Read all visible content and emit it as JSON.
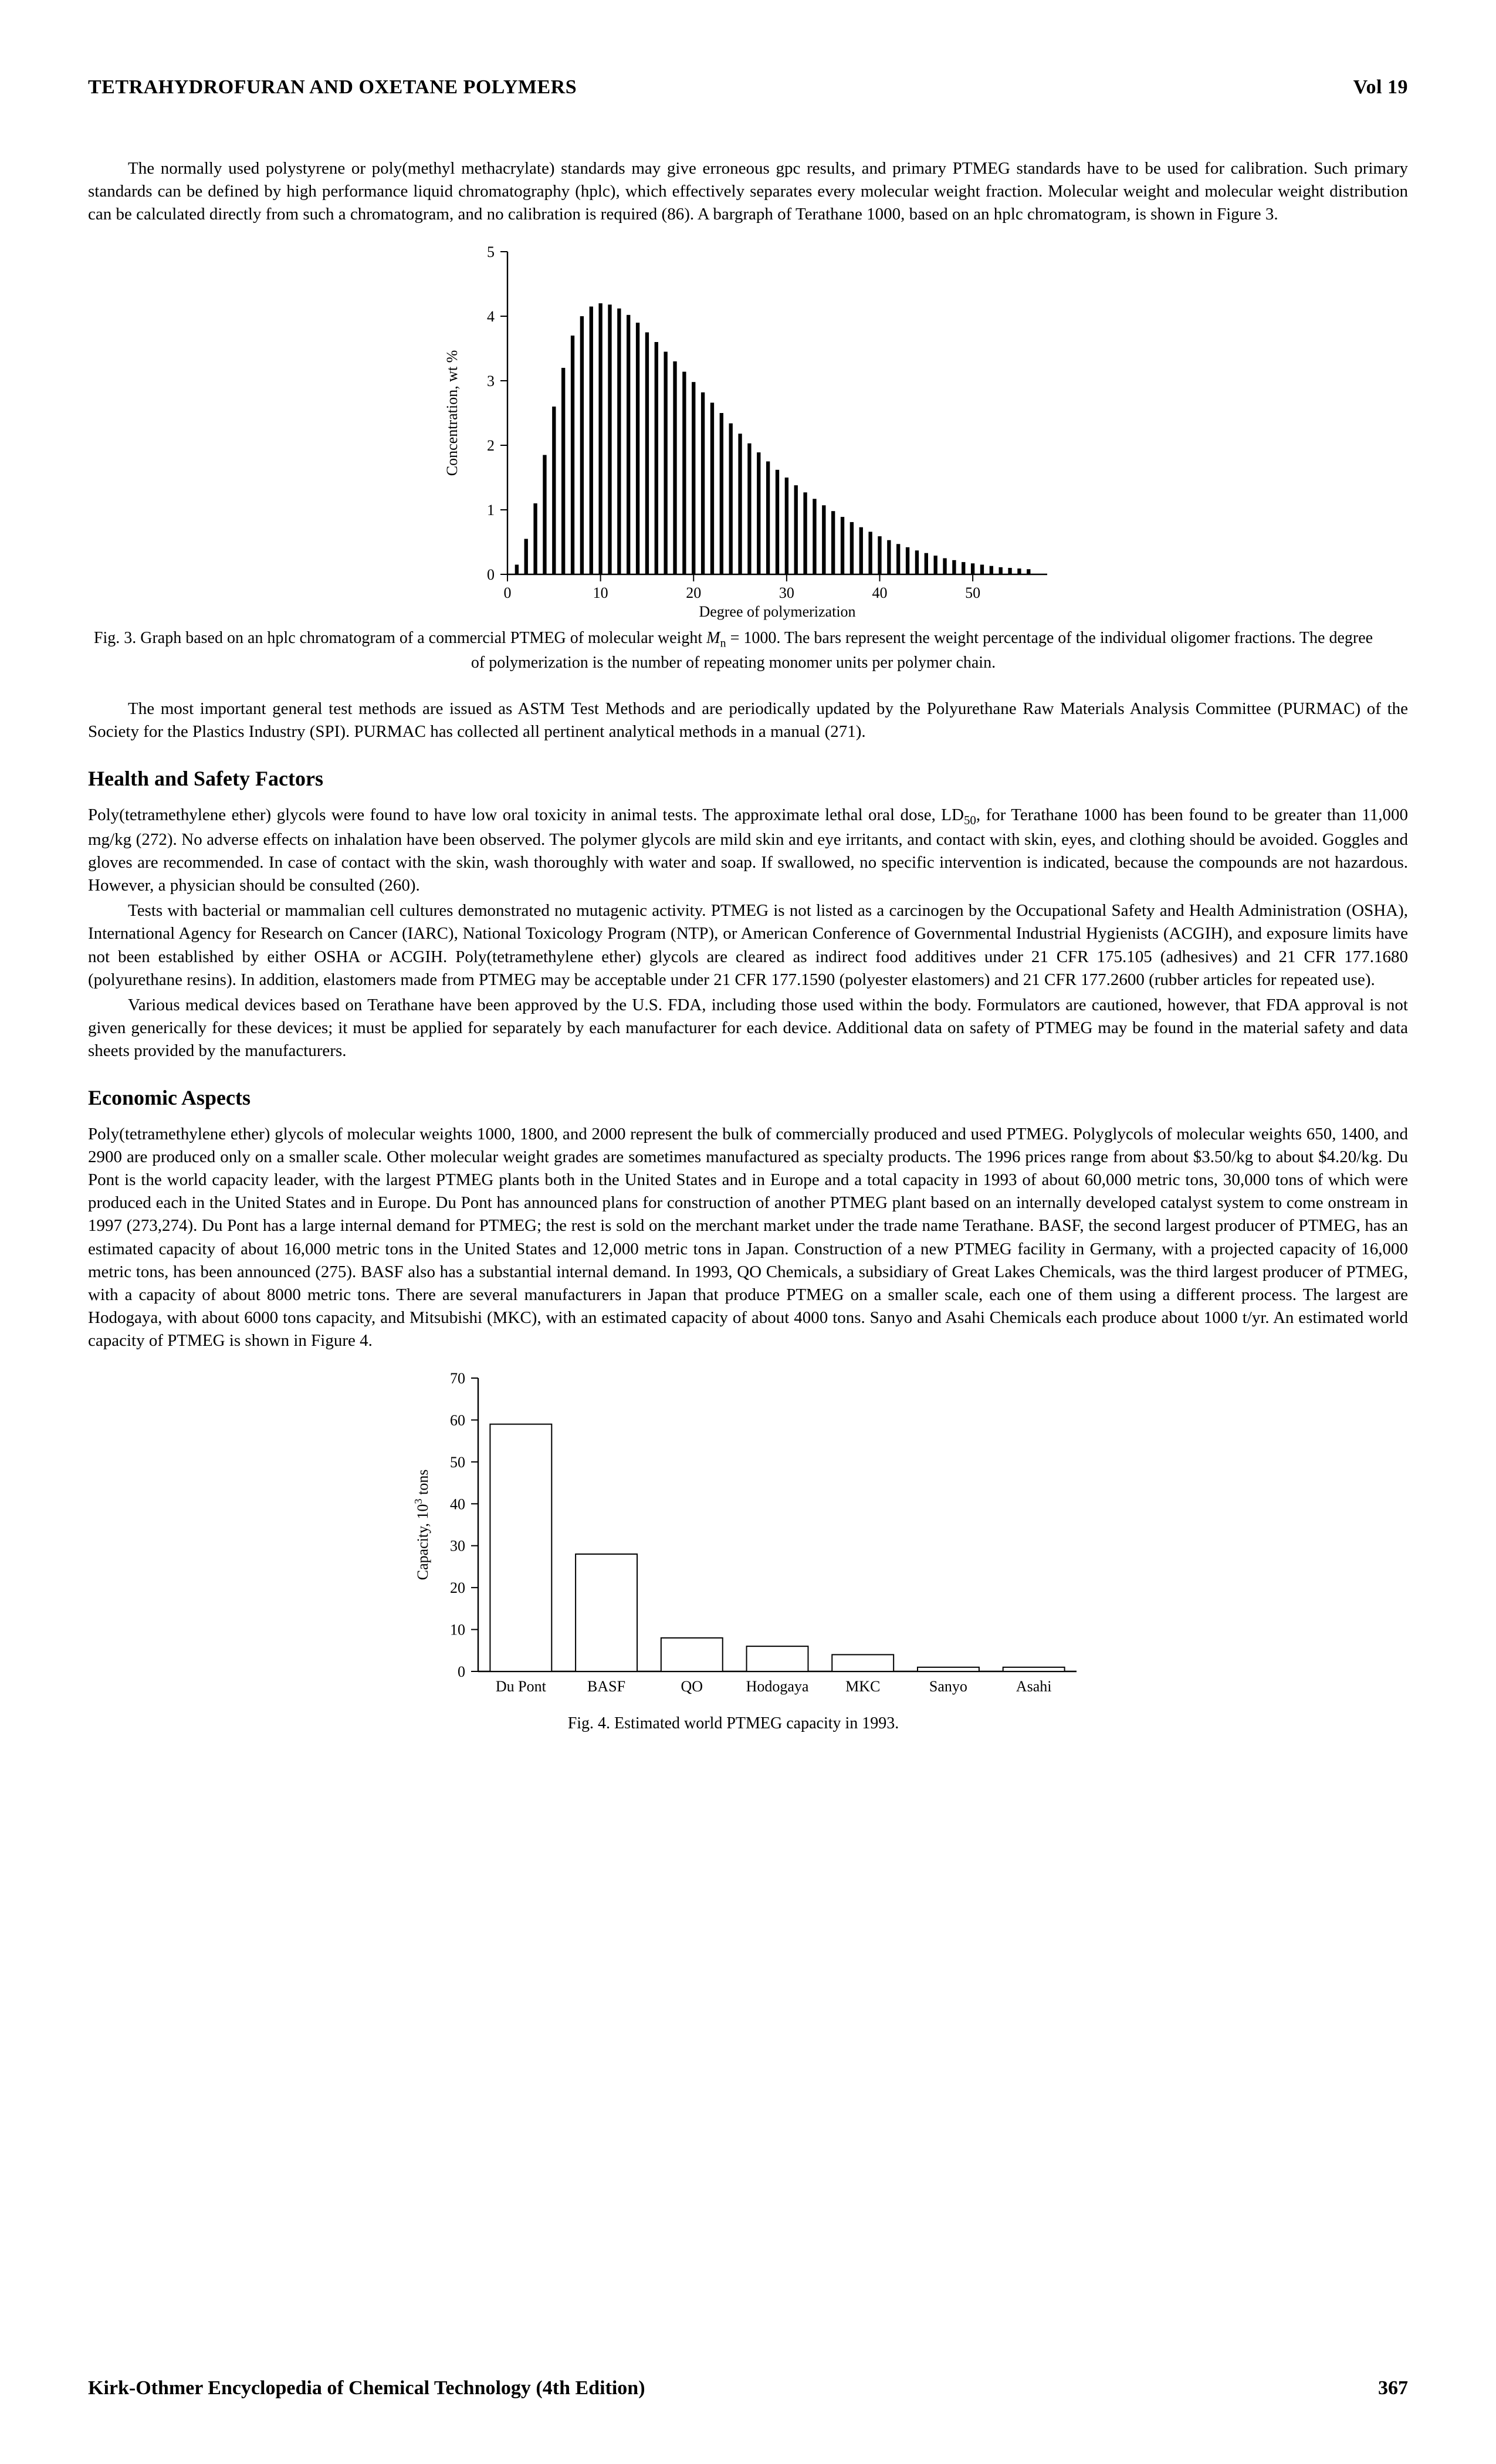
{
  "header": {
    "title": "TETRAHYDROFURAN AND OXETANE POLYMERS",
    "volume": "Vol 19"
  },
  "footer": {
    "book": "Kirk-Othmer Encyclopedia of Chemical Technology (4th Edition)",
    "page": "367"
  },
  "paragraphs": {
    "p1": "The normally used polystyrene or poly(methyl methacrylate) standards may give erroneous gpc results, and primary PTMEG standards have to be used for calibration. Such primary standards can be defined by high performance liquid chromatography (hplc), which effectively separates every molecular weight fraction. Molecular weight and molecular weight distribution can be calculated directly from such a chromatogram, and no calibration is required (86). A bargraph of Terathane 1000, based on an hplc chromatogram, is shown in Figure 3.",
    "fig3_a": "Fig. 3. Graph based on an hplc chromatogram of a commercial PTMEG of molecular weight ",
    "fig3_mvar": "M",
    "fig3_sub": "n",
    "fig3_b": " = 1000. The bars represent the weight percentage of the individual oligomer fractions. The degree of polymerization is the number of repeating monomer units per polymer chain.",
    "p2": "The most important general test methods are issued as ASTM Test Methods and are periodically updated by the Polyurethane Raw Materials Analysis Committee (PURMAC) of the Society for the Plastics Industry (SPI). PURMAC has collected all pertinent analytical methods in a manual (271).",
    "h_health": "Health and Safety Factors",
    "p3a": "Poly(tetramethylene ether) glycols were found to have low oral toxicity in animal tests. The approximate lethal oral dose, LD",
    "p3sub": "50",
    "p3b": ", for Terathane 1000 has been found to be greater than 11,000 mg/kg (272). No adverse effects on inhalation have been observed. The polymer glycols are mild skin and eye irritants, and contact with skin, eyes, and clothing should be avoided. Goggles and gloves are recommended. In case of contact with the skin, wash thoroughly with water and soap. If swallowed, no specific intervention is indicated, because the compounds are not hazardous. However, a physician should be consulted (260).",
    "p4": "Tests with bacterial or mammalian cell cultures demonstrated no mutagenic activity. PTMEG is not listed as a carcinogen by the Occupational Safety and Health Administration (OSHA), International Agency for Research on Cancer (IARC), National Toxicology Program (NTP), or American Conference of Governmental Industrial Hygienists (ACGIH), and exposure limits have not been established by either OSHA or ACGIH. Poly(tetramethylene ether) glycols are cleared as indirect food additives under 21 CFR 175.105 (adhesives) and 21 CFR 177.1680 (polyurethane resins). In addition, elastomers made from PTMEG may be acceptable under 21 CFR 177.1590 (polyester elastomers) and 21 CFR 177.2600 (rubber articles for repeated use).",
    "p5": "Various medical devices based on Terathane have been approved by the U.S. FDA, including those used within the body. Formulators are cautioned, however, that FDA approval is not given generically for these devices; it must be applied for separately by each manufacturer for each device. Additional data on safety of PTMEG may be found in the material safety and data sheets provided by the manufacturers.",
    "h_econ": "Economic Aspects",
    "p6": "Poly(tetramethylene ether) glycols of molecular weights 1000, 1800, and 2000 represent the bulk of commercially produced and used PTMEG. Polyglycols of molecular weights 650, 1400, and 2900 are produced only on a smaller scale. Other molecular weight grades are sometimes manufactured as specialty products. The 1996 prices range from about $3.50/kg to about $4.20/kg. Du Pont is the world capacity leader, with the largest PTMEG plants both in the United States and in Europe and a total capacity in 1993 of about 60,000 metric tons, 30,000 tons of which were produced each in the United States and in Europe. Du Pont has announced plans for construction of another PTMEG plant based on an internally developed catalyst system to come onstream in 1997 (273,274). Du Pont has a large internal demand for PTMEG; the rest is sold on the merchant market under the trade name Terathane. BASF, the second largest producer of PTMEG, has an estimated capacity of about 16,000 metric tons in the United States and 12,000 metric tons in Japan. Construction of a new PTMEG facility in Germany, with a projected capacity of 16,000 metric tons, has been announced (275). BASF also has a substantial internal demand. In 1993, QO Chemicals, a subsidiary of Great Lakes Chemicals, was the third largest producer of PTMEG, with a capacity of about 8000 metric tons. There are several manufacturers in Japan that produce PTMEG on a smaller scale, each one of them using a different process. The largest are Hodogaya, with about 6000 tons capacity, and Mitsubishi (MKC), with an estimated capacity of about 4000 tons. Sanyo and Asahi Chemicals each produce about 1000 t/yr. An estimated world capacity of PTMEG is shown in Figure 4.",
    "fig4": "Fig. 4. Estimated world PTMEG capacity in 1993."
  },
  "fig3_chart": {
    "type": "bar",
    "xlabel": "Degree of polymerization",
    "ylabel": "Concentration, wt %",
    "xlim": [
      0,
      58
    ],
    "ylim": [
      0,
      5
    ],
    "xtick_step": 10,
    "ytick_step": 1,
    "bar_color": "#000000",
    "axis_color": "#000000",
    "background_color": "#ffffff",
    "label_fontsize": 26,
    "tick_fontsize": 26,
    "bar_width": 0.4,
    "values": [
      0.15,
      0.55,
      1.1,
      1.85,
      2.6,
      3.2,
      3.7,
      4.0,
      4.15,
      4.2,
      4.18,
      4.12,
      4.02,
      3.9,
      3.75,
      3.6,
      3.45,
      3.3,
      3.14,
      2.98,
      2.82,
      2.66,
      2.5,
      2.34,
      2.18,
      2.03,
      1.89,
      1.75,
      1.62,
      1.5,
      1.38,
      1.27,
      1.17,
      1.07,
      0.98,
      0.89,
      0.81,
      0.73,
      0.66,
      0.59,
      0.53,
      0.47,
      0.42,
      0.37,
      0.33,
      0.29,
      0.25,
      0.22,
      0.19,
      0.17,
      0.15,
      0.13,
      0.11,
      0.1,
      0.09,
      0.08
    ]
  },
  "fig4_chart": {
    "type": "bar",
    "ylabel_a": "Capacity, 10",
    "ylabel_sup": "3",
    "ylabel_b": " tons",
    "ylim": [
      0,
      70
    ],
    "ytick_step": 10,
    "bar_color": "#ffffff",
    "bar_stroke": "#000000",
    "axis_color": "#000000",
    "background_color": "#ffffff",
    "label_fontsize": 26,
    "tick_fontsize": 26,
    "bar_width_ratio": 0.72,
    "categories": [
      "Du Pont",
      "BASF",
      "QO",
      "Hodogaya",
      "MKC",
      "Sanyo",
      "Asahi"
    ],
    "values": [
      59,
      28,
      8,
      6,
      4,
      1,
      1
    ]
  }
}
